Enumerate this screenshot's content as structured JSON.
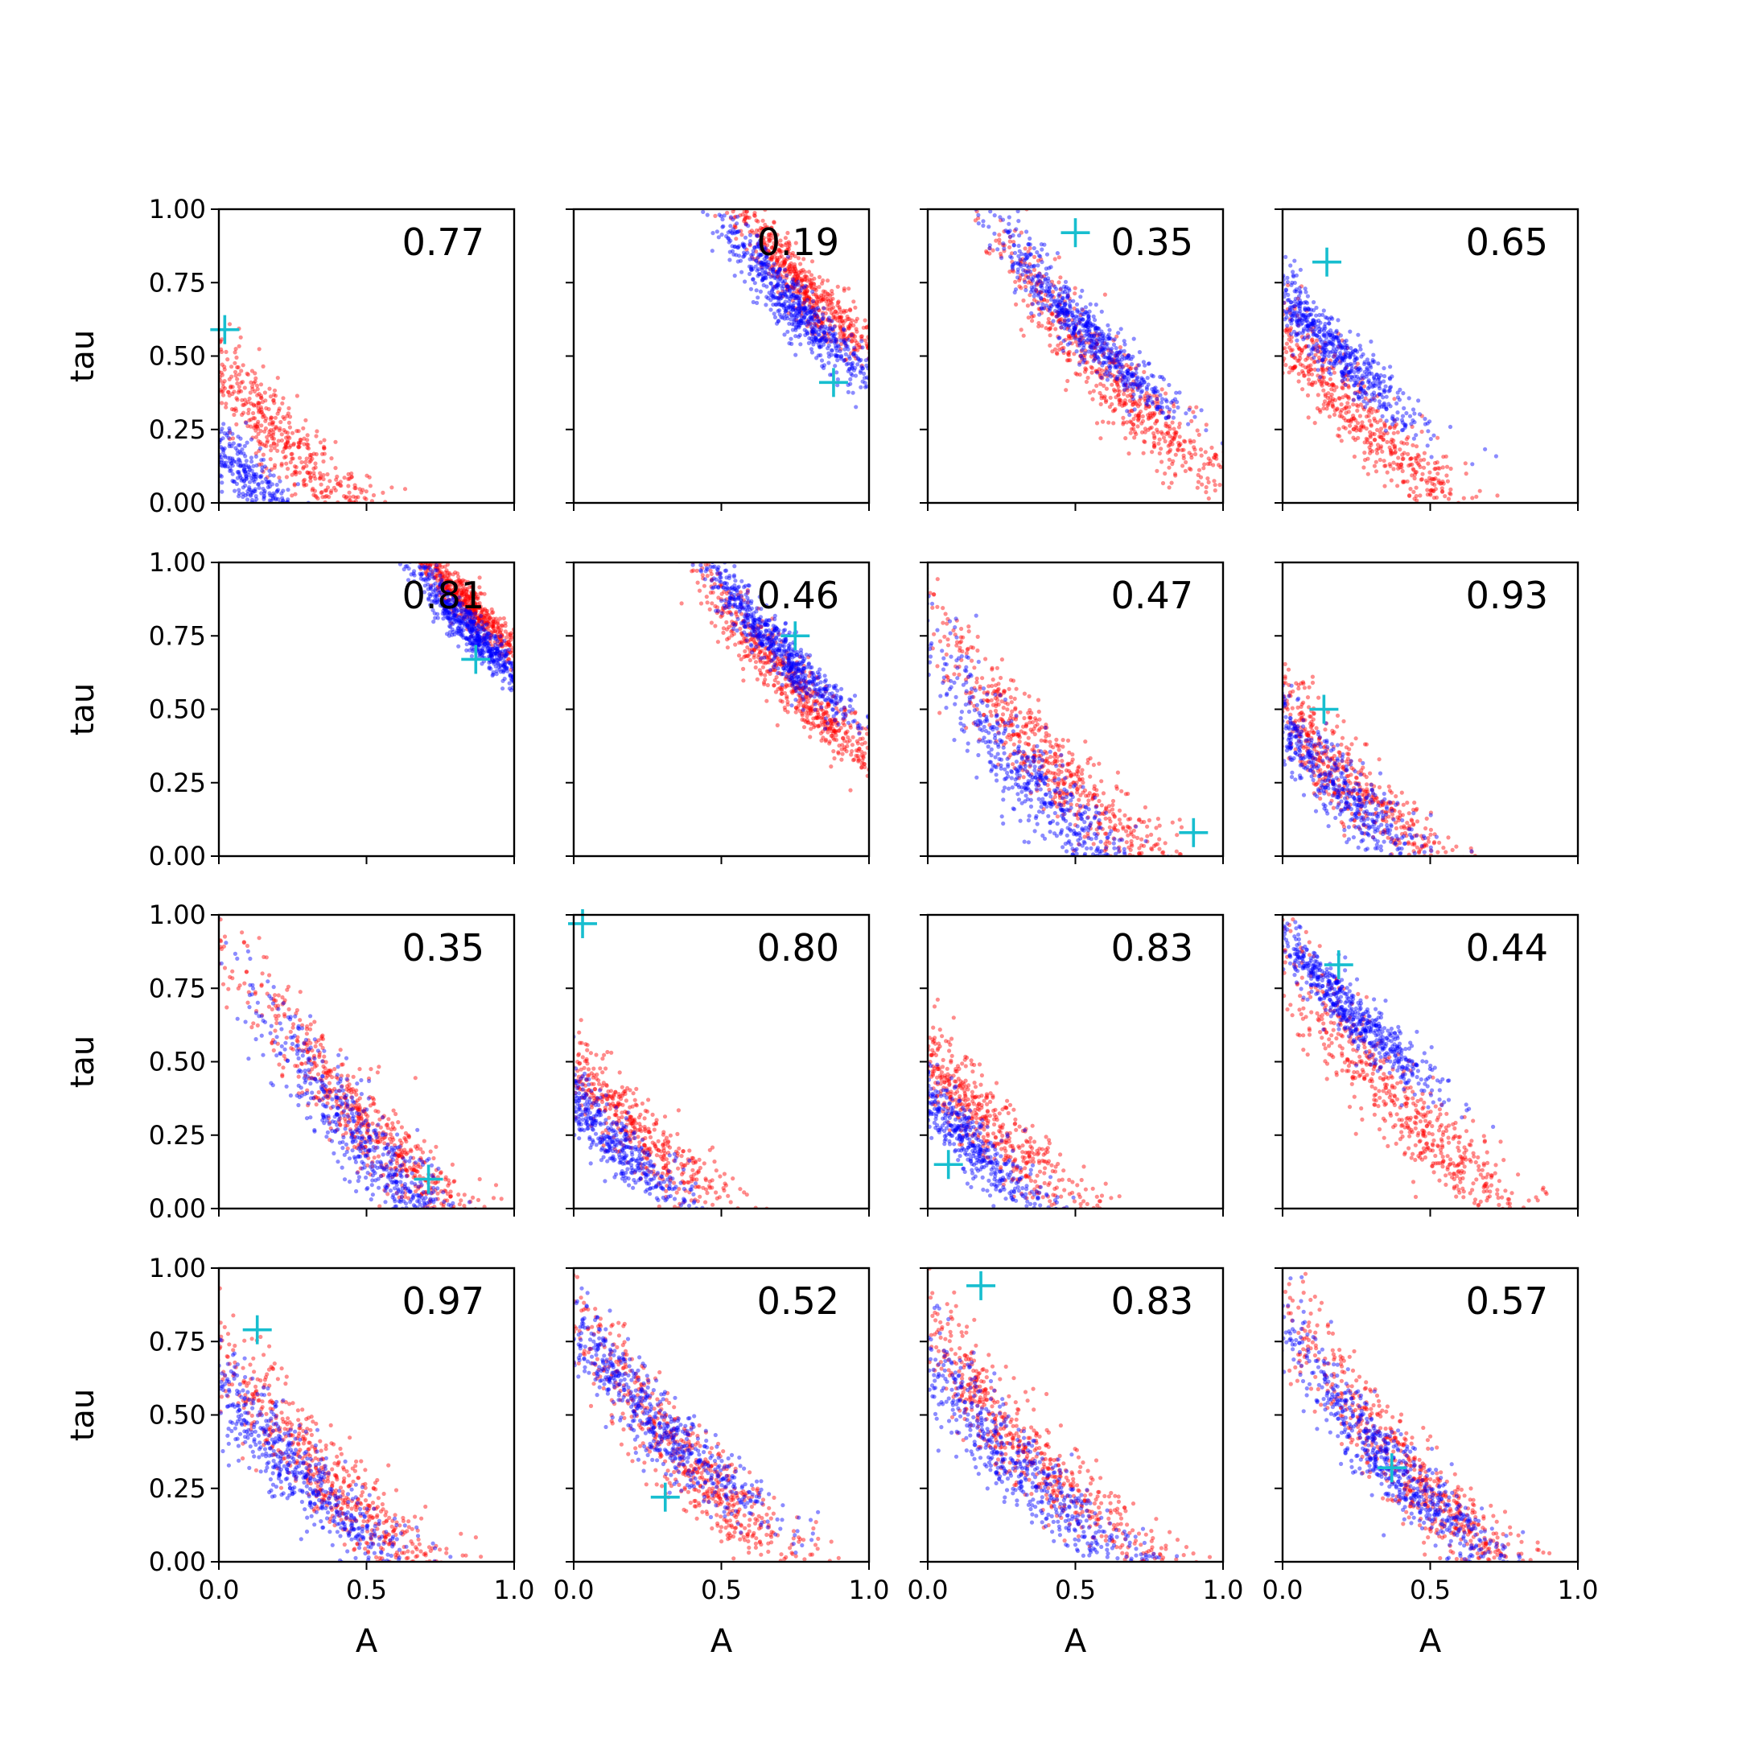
{
  "chart_data": {
    "type": "scatter",
    "grid": false,
    "rows": 4,
    "cols": 4,
    "xlabel": "A",
    "ylabel": "tau",
    "xlim": [
      0,
      1
    ],
    "ylim": [
      0,
      1
    ],
    "x_ticks": [
      "0.0",
      "0.5",
      "1.0"
    ],
    "y_ticks": [
      "0.00",
      "0.25",
      "0.50",
      "0.75",
      "1.00"
    ],
    "colors": {
      "series_a": "#ff0000",
      "series_b": "#0000ff",
      "truth_marker": "#17becf"
    },
    "series_shapes": {
      "blue": "decay_offset",
      "red": "decay_offset"
    },
    "panels": [
      {
        "label": "0.77",
        "truth": [
          0.02,
          0.59
        ],
        "red": {
          "cx": 0.18,
          "cy": 0.25,
          "spread": 0.15
        },
        "blue": {
          "cx": 0.08,
          "cy": 0.1,
          "spread": 0.12
        }
      },
      {
        "label": "0.19",
        "truth": [
          0.88,
          0.41
        ],
        "red": {
          "cx": 0.78,
          "cy": 0.73,
          "spread": 0.1
        },
        "blue": {
          "cx": 0.76,
          "cy": 0.65,
          "spread": 0.09
        }
      },
      {
        "label": "0.35",
        "truth": [
          0.5,
          0.92
        ],
        "red": {
          "cx": 0.62,
          "cy": 0.42,
          "spread": 0.14
        },
        "blue": {
          "cx": 0.52,
          "cy": 0.6,
          "spread": 0.1
        }
      },
      {
        "label": "0.65",
        "truth": [
          0.15,
          0.82
        ],
        "red": {
          "cx": 0.2,
          "cy": 0.35,
          "spread": 0.14
        },
        "blue": {
          "cx": 0.15,
          "cy": 0.55,
          "spread": 0.1
        }
      },
      {
        "label": "0.81",
        "truth": [
          0.87,
          0.67
        ],
        "red": {
          "cx": 0.84,
          "cy": 0.86,
          "spread": 0.07
        },
        "blue": {
          "cx": 0.86,
          "cy": 0.76,
          "spread": 0.07
        }
      },
      {
        "label": "0.46",
        "truth": [
          0.75,
          0.75
        ],
        "red": {
          "cx": 0.74,
          "cy": 0.58,
          "spread": 0.11
        },
        "blue": {
          "cx": 0.68,
          "cy": 0.72,
          "spread": 0.09
        }
      },
      {
        "label": "0.47",
        "truth": [
          0.9,
          0.08
        ],
        "red": {
          "cx": 0.42,
          "cy": 0.3,
          "spread": 0.16
        },
        "blue": {
          "cx": 0.4,
          "cy": 0.2,
          "spread": 0.16
        }
      },
      {
        "label": "0.93",
        "truth": [
          0.14,
          0.5
        ],
        "red": {
          "cx": 0.18,
          "cy": 0.3,
          "spread": 0.14
        },
        "blue": {
          "cx": 0.13,
          "cy": 0.3,
          "spread": 0.13
        }
      },
      {
        "label": "0.35",
        "truth": [
          0.71,
          0.1
        ],
        "red": {
          "cx": 0.48,
          "cy": 0.3,
          "spread": 0.15
        },
        "blue": {
          "cx": 0.55,
          "cy": 0.15,
          "spread": 0.15
        }
      },
      {
        "label": "0.80",
        "truth": [
          0.03,
          0.97
        ],
        "red": {
          "cx": 0.12,
          "cy": 0.35,
          "spread": 0.14
        },
        "blue": {
          "cx": 0.06,
          "cy": 0.3,
          "spread": 0.12
        }
      },
      {
        "label": "0.83",
        "truth": [
          0.07,
          0.15
        ],
        "red": {
          "cx": 0.14,
          "cy": 0.35,
          "spread": 0.14
        },
        "blue": {
          "cx": 0.07,
          "cy": 0.3,
          "spread": 0.12
        }
      },
      {
        "label": "0.44",
        "truth": [
          0.19,
          0.83
        ],
        "red": {
          "cx": 0.4,
          "cy": 0.35,
          "spread": 0.16
        },
        "blue": {
          "cx": 0.2,
          "cy": 0.7,
          "spread": 0.1
        }
      },
      {
        "label": "0.97",
        "truth": [
          0.13,
          0.79
        ],
        "red": {
          "cx": 0.35,
          "cy": 0.3,
          "spread": 0.16
        },
        "blue": {
          "cx": 0.22,
          "cy": 0.35,
          "spread": 0.15
        }
      },
      {
        "label": "0.52",
        "truth": [
          0.31,
          0.22
        ],
        "red": {
          "cx": 0.38,
          "cy": 0.35,
          "spread": 0.16
        },
        "blue": {
          "cx": 0.25,
          "cy": 0.5,
          "spread": 0.14
        }
      },
      {
        "label": "0.83",
        "truth": [
          0.18,
          0.94
        ],
        "red": {
          "cx": 0.32,
          "cy": 0.4,
          "spread": 0.16
        },
        "blue": {
          "cx": 0.28,
          "cy": 0.35,
          "spread": 0.16
        }
      },
      {
        "label": "0.57",
        "truth": [
          0.37,
          0.32
        ],
        "red": {
          "cx": 0.45,
          "cy": 0.28,
          "spread": 0.15
        },
        "blue": {
          "cx": 0.38,
          "cy": 0.32,
          "spread": 0.13
        }
      }
    ]
  }
}
